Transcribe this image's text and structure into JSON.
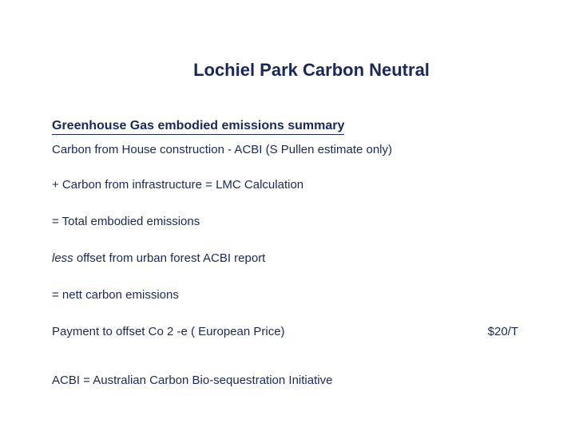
{
  "colors": {
    "text": "#1a2859",
    "background": "#ffffff"
  },
  "title": "Lochiel Park Carbon Neutral",
  "subtitle": "Greenhouse Gas  embodied emissions summary",
  "line1": "Carbon from House construction - ACBI (S Pullen estimate only)",
  "line2": " + Carbon from infrastructure =  LMC Calculation",
  "line3": "= Total embodied emissions",
  "line4_prefix": "less",
  "line4_rest": " offset from urban forest ACBI report",
  "line5": "= nett carbon emissions",
  "payment_label": "Payment to offset Co 2 -e ( European Price)",
  "payment_value": "$20/T",
  "footnote": "ACBI = Australian Carbon Bio-sequestration Initiative"
}
